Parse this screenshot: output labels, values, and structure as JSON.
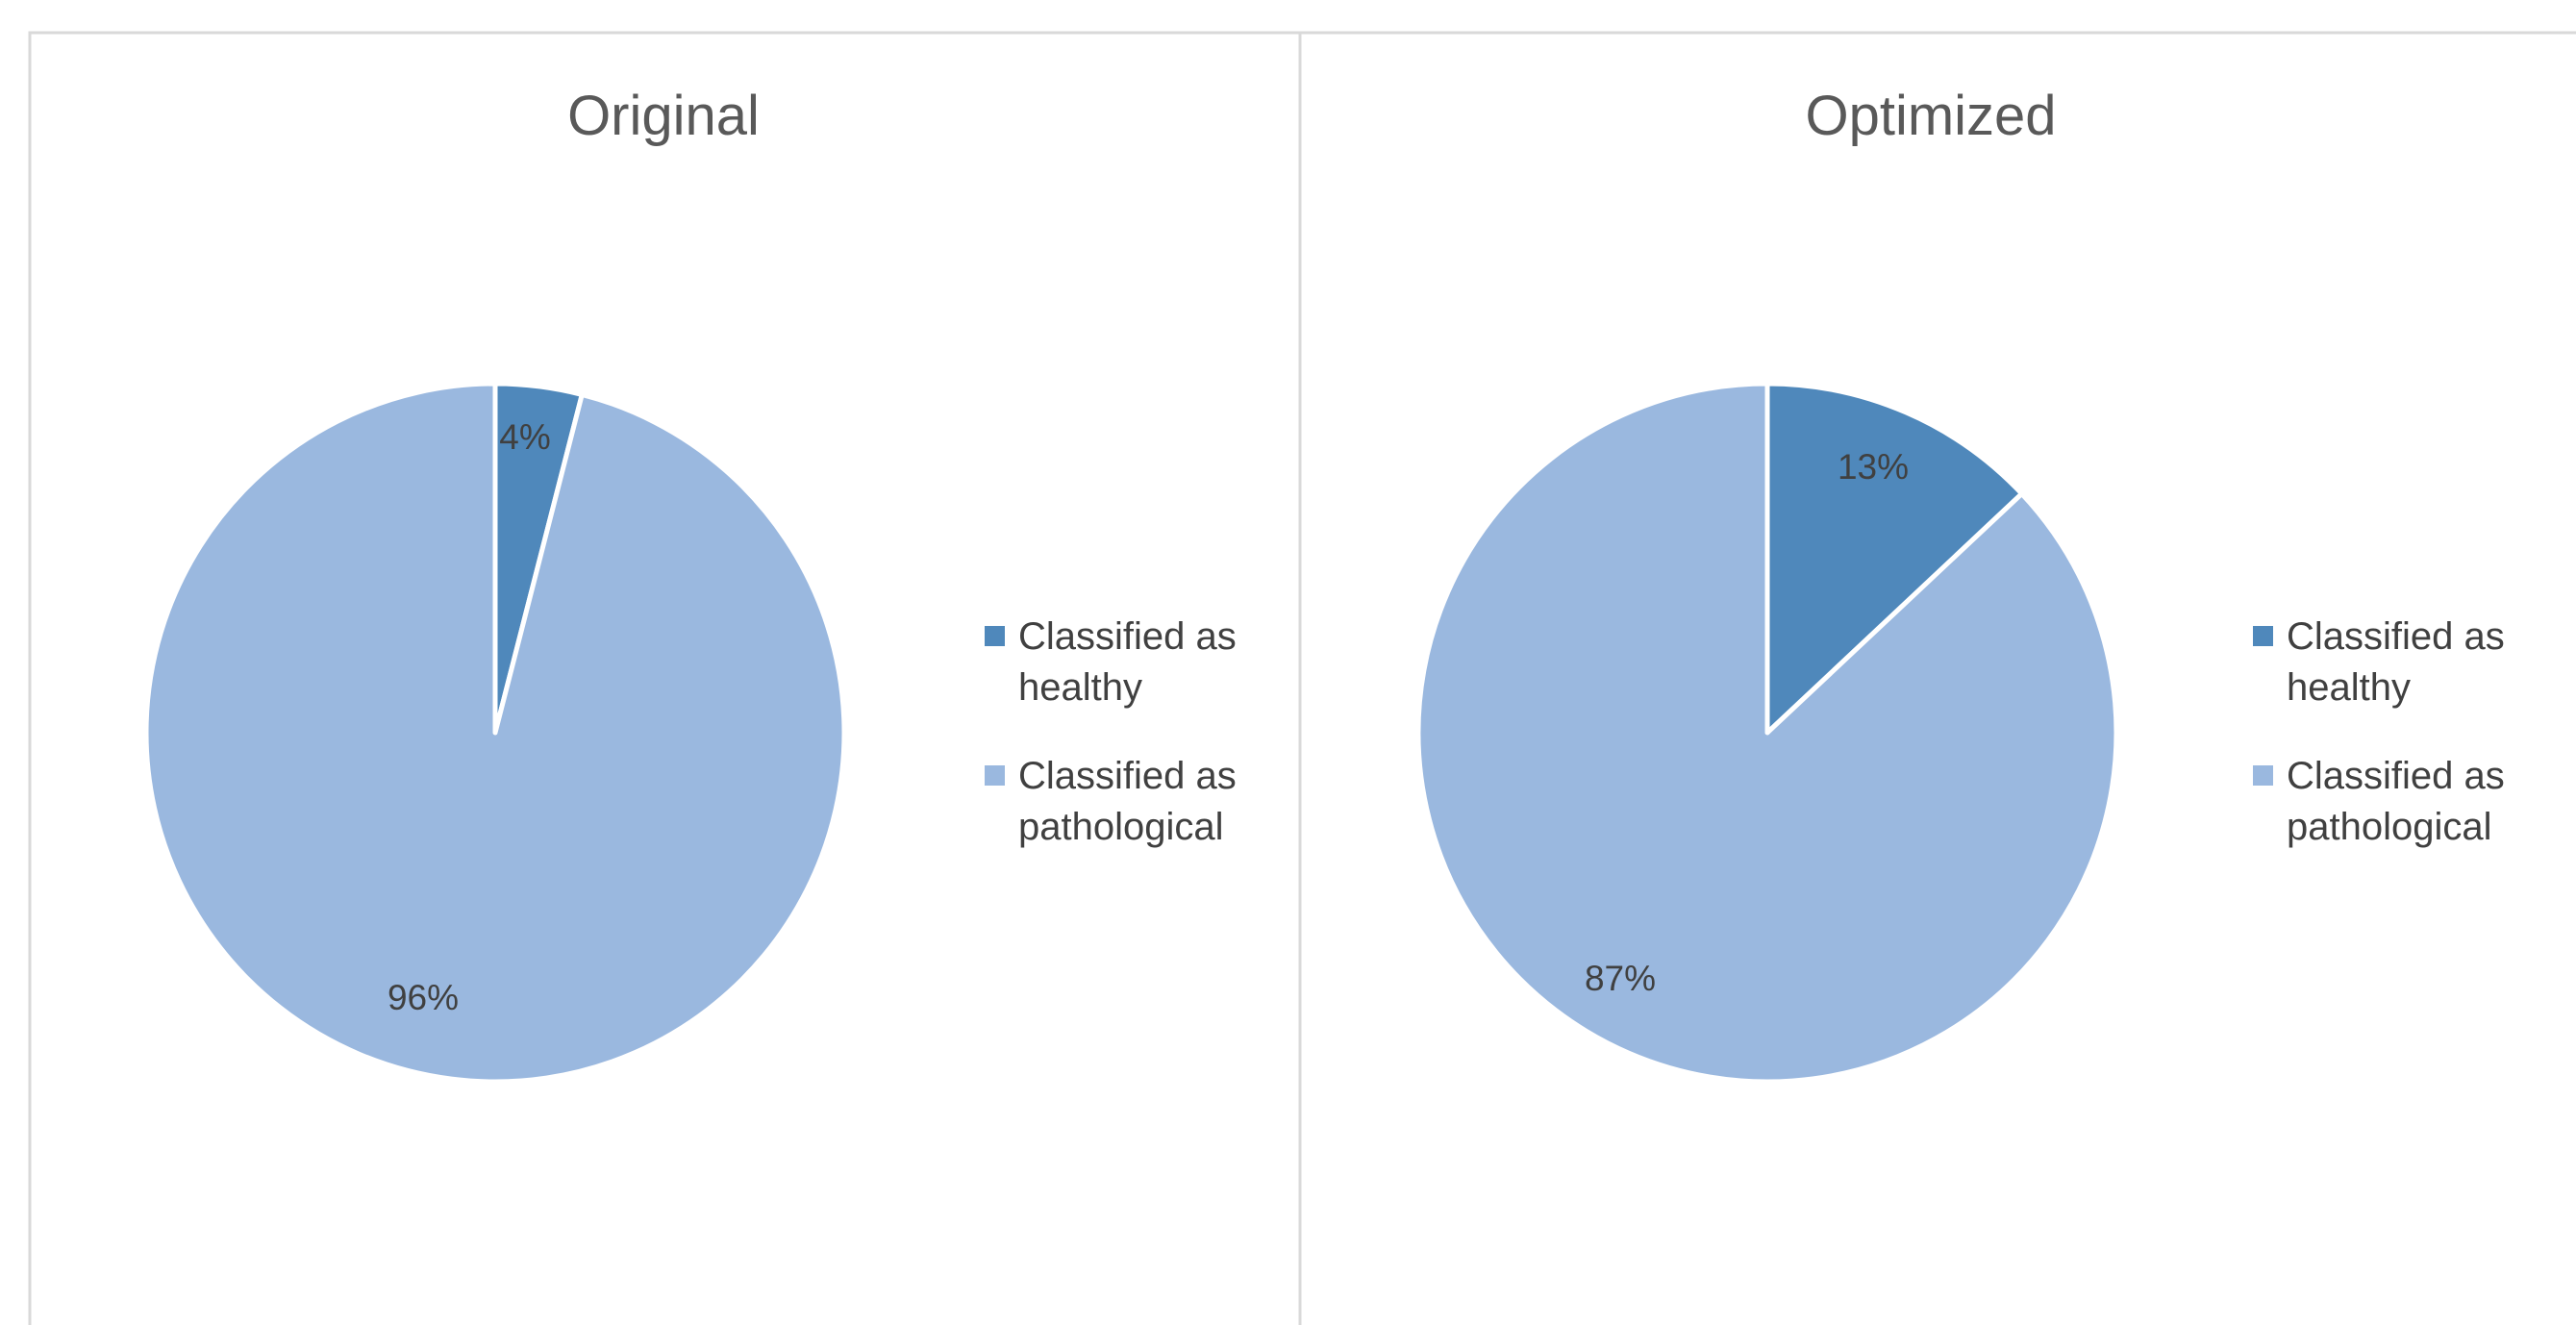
{
  "chart_data": [
    {
      "type": "pie",
      "title": "Original",
      "categories": [
        "Classified as healthy",
        "Classified as pathological"
      ],
      "values": [
        4,
        96
      ],
      "data_labels": [
        "4%",
        "96%"
      ],
      "colors": [
        "#4f88bb",
        "#9ab8df"
      ],
      "legend": {
        "placement": "right",
        "entries": [
          {
            "lines": [
              "Classified as",
              "healthy"
            ]
          },
          {
            "lines": [
              "Classified as",
              "pathological"
            ]
          }
        ]
      }
    },
    {
      "type": "pie",
      "title": "Optimized",
      "categories": [
        "Classified as healthy",
        "Classified as pathological"
      ],
      "values": [
        13,
        87
      ],
      "data_labels": [
        "13%",
        "87%"
      ],
      "colors": [
        "#4f88bb",
        "#9ab8df"
      ],
      "legend": {
        "placement": "right",
        "entries": [
          {
            "lines": [
              "Classified as",
              "healthy"
            ]
          },
          {
            "lines": [
              "Classified as",
              "pathological"
            ]
          }
        ]
      }
    }
  ]
}
